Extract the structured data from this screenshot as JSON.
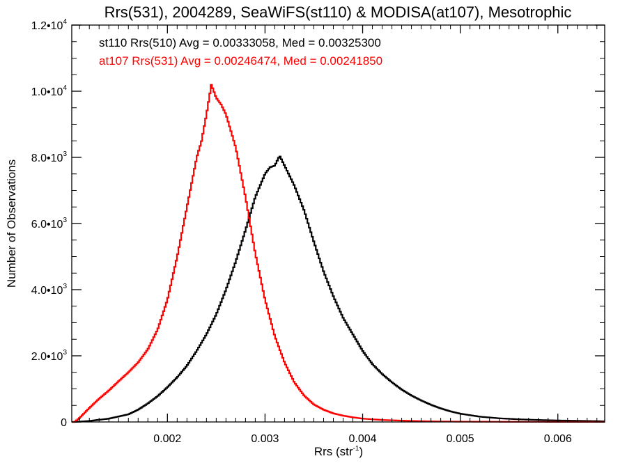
{
  "chart_data": {
    "type": "line",
    "title": "Rrs(531), 2004289, SeaWiFS(st110) & MODISA(at107), Mesotrophic",
    "xlabel": "Rrs (str",
    "xlabel_sup": "-1",
    "xlabel_close": ")",
    "ylabel": "Number of Observations",
    "xlim": [
      0.00102,
      0.00648
    ],
    "ylim": [
      0,
      12000
    ],
    "grid": false,
    "x_ticks": [
      {
        "value": 0.002,
        "label": "0.002"
      },
      {
        "value": 0.003,
        "label": "0.003"
      },
      {
        "value": 0.004,
        "label": "0.004"
      },
      {
        "value": 0.005,
        "label": "0.005"
      },
      {
        "value": 0.006,
        "label": "0.006"
      }
    ],
    "y_ticks": [
      {
        "value": 0,
        "label": "0",
        "sup": ""
      },
      {
        "value": 2000,
        "label": "2.0•10",
        "sup": "3"
      },
      {
        "value": 4000,
        "label": "4.0•10",
        "sup": "3"
      },
      {
        "value": 6000,
        "label": "6.0•10",
        "sup": "3"
      },
      {
        "value": 8000,
        "label": "8.0•10",
        "sup": "3"
      },
      {
        "value": 10000,
        "label": "1.0•10",
        "sup": "4"
      },
      {
        "value": 12000,
        "label": "1.2•10",
        "sup": "4"
      }
    ],
    "annotations": [
      {
        "text": "st110 Rrs(510) Avg = 0.00333058, Med = 0.00325300",
        "color": "#000000"
      },
      {
        "text": "at107 Rrs(531) Avg = 0.00246474, Med = 0.00241850",
        "color": "#ff0000"
      }
    ],
    "series": [
      {
        "color": "#000000",
        "points": [
          [
            0.00105,
            0
          ],
          [
            0.0012,
            30
          ],
          [
            0.0014,
            100
          ],
          [
            0.0016,
            230
          ],
          [
            0.0017,
            370
          ],
          [
            0.0018,
            560
          ],
          [
            0.0019,
            780
          ],
          [
            0.002,
            1050
          ],
          [
            0.0021,
            1350
          ],
          [
            0.0022,
            1700
          ],
          [
            0.0023,
            2150
          ],
          [
            0.0024,
            2650
          ],
          [
            0.0025,
            3250
          ],
          [
            0.0026,
            4000
          ],
          [
            0.0027,
            4850
          ],
          [
            0.0028,
            5800
          ],
          [
            0.0029,
            6800
          ],
          [
            0.003,
            7500
          ],
          [
            0.00305,
            7700
          ],
          [
            0.0031,
            7750
          ],
          [
            0.00315,
            8050
          ],
          [
            0.0032,
            7750
          ],
          [
            0.00325,
            7450
          ],
          [
            0.0033,
            7150
          ],
          [
            0.0034,
            6400
          ],
          [
            0.0035,
            5450
          ],
          [
            0.0036,
            4550
          ],
          [
            0.0037,
            3800
          ],
          [
            0.0038,
            3150
          ],
          [
            0.0039,
            2650
          ],
          [
            0.004,
            2150
          ],
          [
            0.0041,
            1750
          ],
          [
            0.0042,
            1450
          ],
          [
            0.0043,
            1200
          ],
          [
            0.0044,
            980
          ],
          [
            0.0045,
            800
          ],
          [
            0.0046,
            650
          ],
          [
            0.0047,
            520
          ],
          [
            0.0048,
            410
          ],
          [
            0.0049,
            320
          ],
          [
            0.005,
            250
          ],
          [
            0.0052,
            160
          ],
          [
            0.0054,
            110
          ],
          [
            0.0056,
            80
          ],
          [
            0.0058,
            60
          ],
          [
            0.006,
            45
          ],
          [
            0.0062,
            35
          ],
          [
            0.0064,
            25
          ],
          [
            0.00648,
            20
          ]
        ]
      },
      {
        "color": "#ff0000",
        "points": [
          [
            0.00105,
            0
          ],
          [
            0.0011,
            120
          ],
          [
            0.0012,
            420
          ],
          [
            0.0013,
            700
          ],
          [
            0.0014,
            950
          ],
          [
            0.0015,
            1230
          ],
          [
            0.0016,
            1500
          ],
          [
            0.0017,
            1800
          ],
          [
            0.0018,
            2200
          ],
          [
            0.0019,
            2800
          ],
          [
            0.002,
            3700
          ],
          [
            0.0021,
            5000
          ],
          [
            0.0022,
            6500
          ],
          [
            0.0023,
            8000
          ],
          [
            0.00235,
            8500
          ],
          [
            0.0024,
            9300
          ],
          [
            0.00245,
            10200
          ],
          [
            0.0025,
            9800
          ],
          [
            0.00255,
            9600
          ],
          [
            0.0026,
            9300
          ],
          [
            0.00265,
            8800
          ],
          [
            0.0027,
            8300
          ],
          [
            0.0028,
            6800
          ],
          [
            0.0029,
            5100
          ],
          [
            0.003,
            3700
          ],
          [
            0.0031,
            2600
          ],
          [
            0.0032,
            1800
          ],
          [
            0.0033,
            1200
          ],
          [
            0.0034,
            800
          ],
          [
            0.0035,
            530
          ],
          [
            0.0036,
            370
          ],
          [
            0.0037,
            260
          ],
          [
            0.0038,
            190
          ],
          [
            0.0039,
            140
          ],
          [
            0.004,
            100
          ],
          [
            0.0042,
            60
          ],
          [
            0.0044,
            40
          ],
          [
            0.0046,
            25
          ],
          [
            0.0048,
            15
          ],
          [
            0.005,
            10
          ],
          [
            0.0055,
            5
          ],
          [
            0.006,
            3
          ],
          [
            0.00648,
            2
          ]
        ]
      }
    ]
  }
}
